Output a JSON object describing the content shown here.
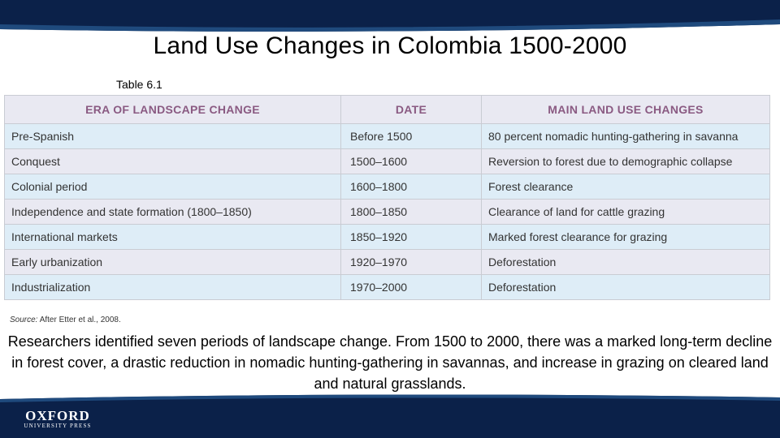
{
  "slide": {
    "title": "Land Use Changes in Colombia 1500-2000",
    "table_label": "Table 6.1",
    "source_label": "Source:",
    "source_text": " After Etter et al., 2008.",
    "caption": "Researchers identified seven periods of landscape change. From 1500 to 2000, there was a marked long-term decline in forest cover, a drastic reduction in nomadic hunting-gathering in savannas, and increase in grazing on cleared land and natural grasslands."
  },
  "table": {
    "headers": [
      "ERA OF LANDSCAPE CHANGE",
      "DATE",
      "MAIN LAND USE CHANGES"
    ],
    "rows": [
      [
        "Pre-Spanish",
        "Before 1500",
        "80 percent nomadic hunting-gathering in savanna"
      ],
      [
        "Conquest",
        "1500–1600",
        "Reversion to forest due to demographic collapse"
      ],
      [
        "Colonial period",
        "1600–1800",
        "Forest clearance"
      ],
      [
        "Independence and state formation (1800–1850)",
        "1800–1850",
        "Clearance of land for cattle grazing"
      ],
      [
        "International markets",
        "1850–1920",
        "Marked forest clearance for grazing"
      ],
      [
        "Early urbanization",
        "1920–1970",
        "Deforestation"
      ],
      [
        "Industrialization",
        "1970–2000",
        "Deforestation"
      ]
    ]
  },
  "logo": {
    "name": "OXFORD",
    "subtitle": "UNIVERSITY PRESS"
  },
  "colors": {
    "band_dark": "#0b2149",
    "band_mid": "#1f4a7d",
    "header_text": "#8a5a82",
    "row_blue": "#deedf7",
    "row_gray": "#e9e9f2"
  }
}
